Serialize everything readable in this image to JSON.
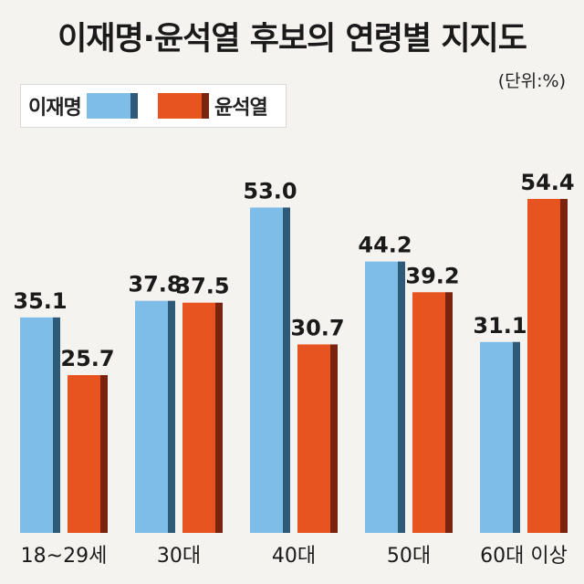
{
  "title": "이재명·윤석열 후보의 연령별 지지도",
  "unit": "(단위:%)",
  "colors": {
    "lee_face": "#7dbde8",
    "lee_side": "#2c5a78",
    "yoon_face": "#e8541f",
    "yoon_side": "#7a2410",
    "background": "#f5f3ef"
  },
  "legend": [
    {
      "label": "이재명",
      "series": 0
    },
    {
      "label": "윤석열",
      "series": 1
    }
  ],
  "chart_data": {
    "type": "bar",
    "title": "이재명·윤석열 후보의 연령별 지지도",
    "unit": "%",
    "categories": [
      "18~29세",
      "30대",
      "40대",
      "50대",
      "60대 이상"
    ],
    "series": [
      {
        "name": "이재명",
        "values": [
          35.1,
          37.8,
          53.0,
          44.2,
          31.1
        ],
        "labels": [
          "35.1",
          "37.8",
          "53.0",
          "44.2",
          "31.1"
        ]
      },
      {
        "name": "윤석열",
        "values": [
          25.7,
          37.5,
          30.7,
          39.2,
          54.4
        ],
        "labels": [
          "25.7",
          "37.5",
          "30.7",
          "39.2",
          "54.4"
        ]
      }
    ],
    "ylim": [
      0,
      60
    ],
    "grid": false,
    "legend_position": "top-left"
  }
}
